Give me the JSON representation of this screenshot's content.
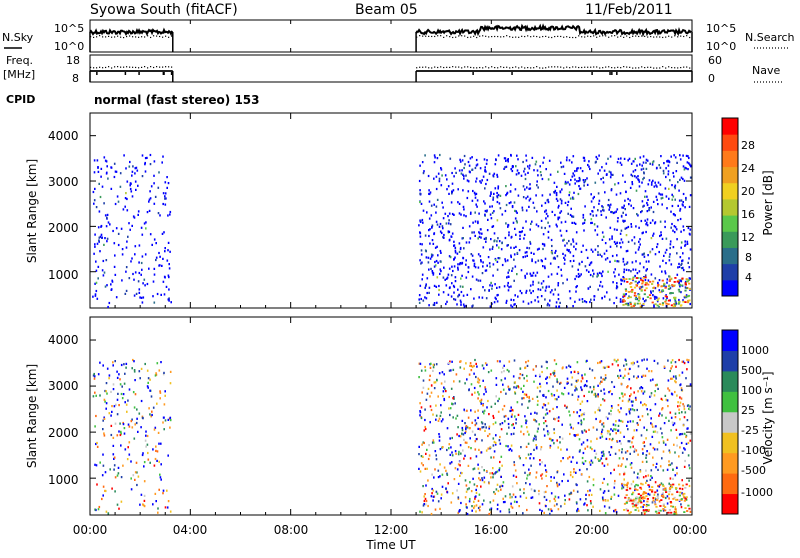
{
  "header": {
    "station": "Syowa South (fitACF)",
    "beam": "Beam 05",
    "date": "11/Feb/2011"
  },
  "top_panels": {
    "nsky_label": "N.Sky",
    "nsky_ticks": [
      "10^5",
      "10^0"
    ],
    "nsearch_label": "N.Search",
    "nsearch_ticks": [
      "10^5",
      "10^0"
    ],
    "freq_label_1": "Freq.",
    "freq_label_2": "[MHz]",
    "freq_ticks": [
      "18",
      "8"
    ],
    "nave_label": "Nave",
    "nave_ticks": [
      "60",
      "0"
    ],
    "cpid_label": "CPID",
    "cpid_value": "normal (fast stereo) 153"
  },
  "x_axis": {
    "ticks": [
      "00:00",
      "04:00",
      "08:00",
      "12:00",
      "16:00",
      "20:00",
      "00:00"
    ],
    "label": "Time UT"
  },
  "power_panel": {
    "ylabel": "Slant Range [km]",
    "yticks": [
      "4000",
      "3000",
      "2000",
      "1000"
    ],
    "colorbar_label": "Power [dB]",
    "colorbar_ticks": [
      "28",
      "24",
      "20",
      "16",
      "12",
      "8",
      "4"
    ],
    "colors": [
      "#0000ff",
      "#1f3fa8",
      "#2a6e8a",
      "#3a9a5a",
      "#5ac84a",
      "#b4c830",
      "#f0d020",
      "#f0a020",
      "#ff7a1a",
      "#ff4a10",
      "#ff0000"
    ]
  },
  "velocity_panel": {
    "ylabel": "Slant Range [km]",
    "yticks": [
      "4000",
      "3000",
      "2000",
      "1000"
    ],
    "colorbar_label": "Velocity [m s⁻¹]",
    "colorbar_ticks": [
      "1000",
      "500",
      "100",
      "25",
      "-25",
      "-100",
      "-500",
      "-1000"
    ],
    "colors": [
      "#0000ff",
      "#1f3fa8",
      "#2a8a5a",
      "#40c040",
      "#c8c8c8",
      "#f0c020",
      "#ff9a20",
      "#ff6a10",
      "#ff0000"
    ]
  },
  "chart_data": {
    "type": "heatmap",
    "title": "Syowa South (fitACF)",
    "xlabel": "Time UT",
    "ylabel": "Slant Range [km]",
    "x_range_hours": [
      0,
      24
    ],
    "y_range_km": [
      200,
      4500
    ],
    "data_segments_hours": [
      [
        0.0,
        3.3
      ],
      [
        13.0,
        24.0
      ]
    ],
    "gap_hours": [
      3.3,
      13.0
    ],
    "power_range_db": [
      0,
      30
    ],
    "velocity_range_ms": [
      -1000,
      1000
    ],
    "grid": false
  }
}
